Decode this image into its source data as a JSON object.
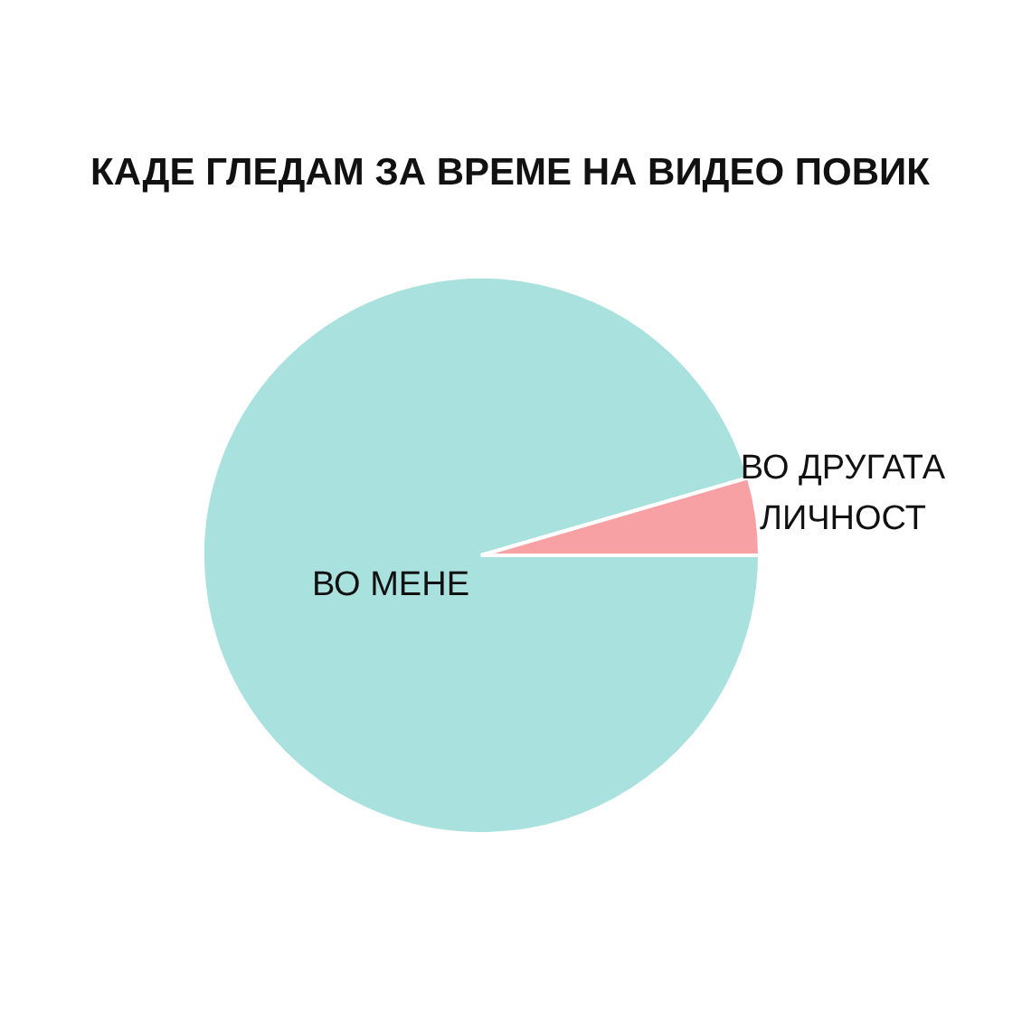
{
  "chart_data": {
    "type": "pie",
    "title": "КАДЕ ГЛЕДАМ ЗА ВРЕМЕ НА ВИДЕО ПОВИК",
    "categories": [
      "ВО МЕНЕ",
      "ВО ДРУГАТА ЛИЧНОСТ"
    ],
    "values": [
      95.5,
      4.5
    ],
    "colors": [
      "#a9e1de",
      "#f8a1a4"
    ]
  }
}
